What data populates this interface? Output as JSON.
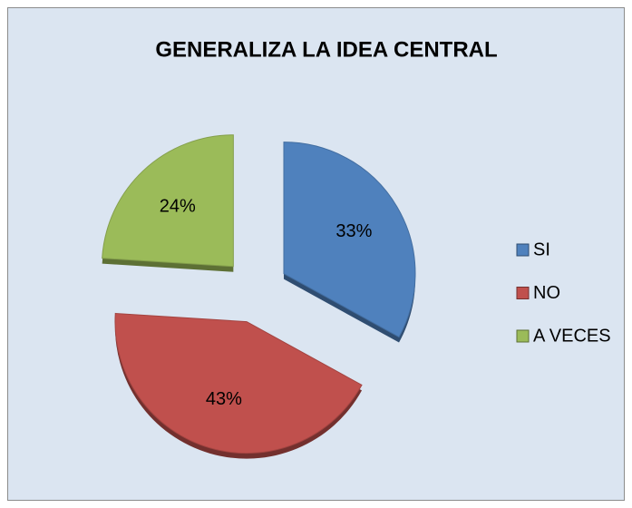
{
  "chart_data": {
    "type": "pie",
    "title": "GENERALIZA LA IDEA CENTRAL",
    "categories": [
      "SI",
      "NO",
      "A VECES"
    ],
    "values": [
      33,
      43,
      24
    ],
    "value_labels": [
      "33%",
      "43%",
      "24%"
    ],
    "colors": [
      "#4f81bd",
      "#c0504d",
      "#9bbb59"
    ],
    "exploded": true,
    "legend": "right"
  }
}
